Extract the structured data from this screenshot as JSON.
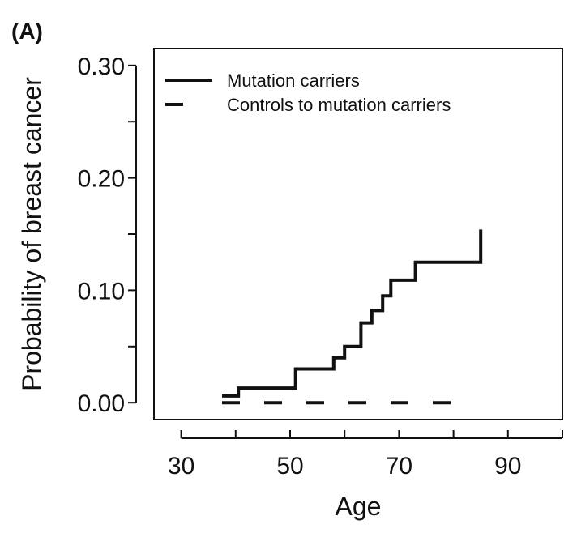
{
  "chart_data": {
    "type": "line",
    "panel_label": "(A)",
    "xlabel": "Age",
    "ylabel": "Probability of breast cancer",
    "xlim": [
      25,
      100
    ],
    "ylim": [
      -0.015,
      0.315
    ],
    "x_ticks": [
      30,
      40,
      50,
      60,
      70,
      80,
      90,
      100
    ],
    "x_tick_labels": [
      "30",
      "50",
      "70",
      "90"
    ],
    "x_tick_label_values": [
      30,
      50,
      70,
      90
    ],
    "y_ticks": [
      0.0,
      0.05,
      0.1,
      0.15,
      0.2,
      0.25,
      0.3
    ],
    "y_tick_labels": [
      "0.00",
      "0.10",
      "0.20",
      "0.30"
    ],
    "y_tick_label_values": [
      0.0,
      0.1,
      0.2,
      0.3
    ],
    "grid": false,
    "legend_position": "top-left",
    "series": [
      {
        "name": "Mutation carriers",
        "style": "solid",
        "color": "#111111",
        "x": [
          37.5,
          40.5,
          40.5,
          51,
          51,
          58,
          58,
          60,
          60,
          63,
          63,
          65,
          65,
          67,
          67,
          68.5,
          68.5,
          73,
          73,
          85,
          85
        ],
        "y": [
          0.006,
          0.006,
          0.013,
          0.013,
          0.03,
          0.03,
          0.04,
          0.04,
          0.05,
          0.05,
          0.071,
          0.071,
          0.082,
          0.082,
          0.095,
          0.095,
          0.109,
          0.109,
          0.125,
          0.125,
          0.154
        ]
      },
      {
        "name": "Controls to mutation carriers",
        "style": "dashed",
        "color": "#111111",
        "x": [
          37.5,
          81
        ],
        "y": [
          0.0,
          0.0
        ]
      }
    ]
  }
}
